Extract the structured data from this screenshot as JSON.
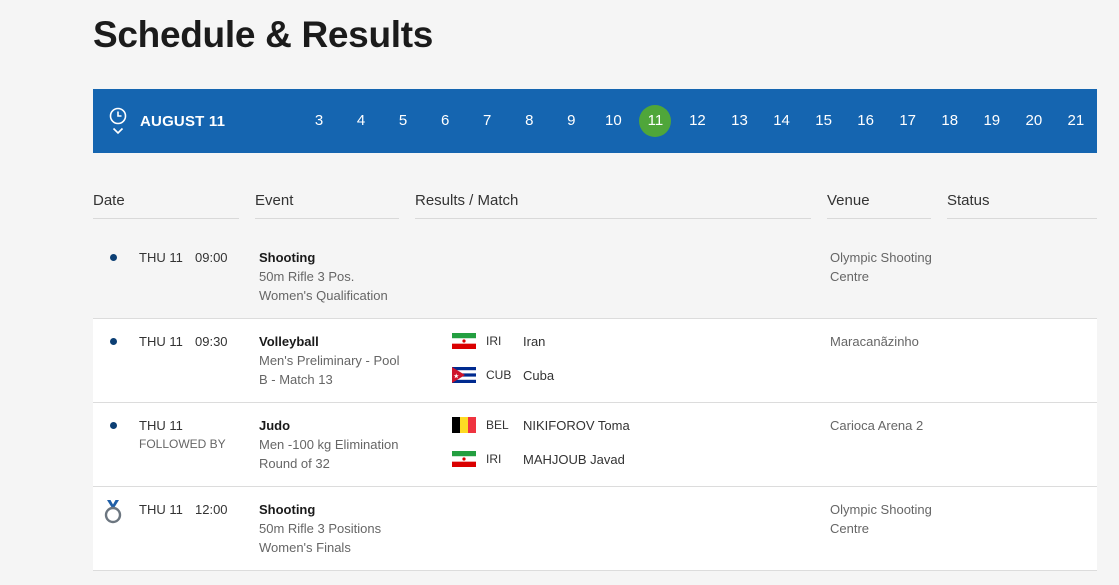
{
  "page": {
    "title": "Schedule & Results"
  },
  "datebar": {
    "current_label": "AUGUST  11",
    "active_day": "11",
    "days": [
      "3",
      "4",
      "5",
      "6",
      "7",
      "8",
      "9",
      "10",
      "11",
      "12",
      "13",
      "14",
      "15",
      "16",
      "17",
      "18",
      "19",
      "20",
      "21"
    ],
    "colors": {
      "bar": "#1565b0",
      "active": "#4fa63a"
    }
  },
  "columns": {
    "date": "Date",
    "event": "Event",
    "results": "Results / Match",
    "venue": "Venue",
    "status": "Status"
  },
  "rows": [
    {
      "marker": "dot",
      "day": "THU 11",
      "time": "09:00",
      "sport": "Shooting",
      "event_line1": "50m Rifle 3 Pos.",
      "event_line2": "Women's Qualification",
      "venue_line1": "Olympic Shooting",
      "venue_line2": "Centre",
      "matches": []
    },
    {
      "marker": "dot",
      "day": "THU 11",
      "time": "09:30",
      "sport": "Volleyball",
      "event_line1": "Men's Preliminary - Pool",
      "event_line2": "B - Match 13",
      "venue_line1": "Maracanãzinho",
      "venue_line2": "",
      "matches": [
        {
          "flag": "iran-flag",
          "code": "IRI",
          "name": "Iran"
        },
        {
          "flag": "cuba-flag",
          "code": "CUB",
          "name": "Cuba"
        }
      ]
    },
    {
      "marker": "dot",
      "day": "THU 11",
      "time": "FOLLOWED BY",
      "sport": "Judo",
      "event_line1": "Men -100 kg Elimination",
      "event_line2": "Round of 32",
      "venue_line1": "Carioca Arena 2",
      "venue_line2": "",
      "matches": [
        {
          "flag": "belgium-flag",
          "code": "BEL",
          "name": "NIKIFOROV Toma"
        },
        {
          "flag": "iran-flag",
          "code": "IRI",
          "name": "MAHJOUB Javad"
        }
      ]
    },
    {
      "marker": "medal-icon",
      "day": "THU 11",
      "time": "12:00",
      "sport": "Shooting",
      "event_line1": "50m Rifle 3 Positions",
      "event_line2": "Women's Finals",
      "venue_line1": "Olympic Shooting",
      "venue_line2": "Centre",
      "matches": []
    }
  ]
}
